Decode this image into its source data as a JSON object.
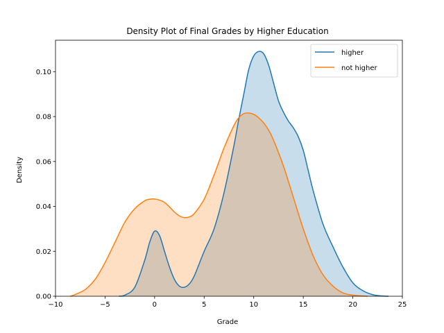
{
  "chart_data": {
    "type": "area",
    "title": "Density Plot of Final Grades by Higher Education",
    "xlabel": "Grade",
    "ylabel": "Density",
    "xlim": [
      -10,
      25
    ],
    "ylim": [
      0,
      0.114
    ],
    "xticks": [
      -10,
      -5,
      0,
      5,
      10,
      15,
      20,
      25
    ],
    "xtick_labels": [
      "−10",
      "−5",
      "0",
      "5",
      "10",
      "15",
      "20",
      "25"
    ],
    "yticks": [
      0,
      0.02,
      0.04,
      0.06,
      0.08,
      0.1
    ],
    "ytick_labels": [
      "0.00",
      "0.02",
      "0.04",
      "0.06",
      "0.08",
      "0.10"
    ],
    "grid": false,
    "legend_position": "top-right",
    "series": [
      {
        "name": "higher",
        "color": "#1f77b4",
        "fill_color": "#1f77b4",
        "x": [
          -3.6,
          -3,
          -2,
          -1,
          -0.5,
          0,
          0.5,
          1,
          1.5,
          2,
          2.5,
          3,
          3.5,
          4,
          5,
          6,
          7,
          8,
          8.5,
          9,
          9.5,
          10,
          10.5,
          11,
          11.5,
          12,
          12.5,
          13,
          13.5,
          14,
          14.5,
          15,
          15.5,
          16,
          17,
          18,
          19,
          20,
          21,
          22,
          23,
          23.6
        ],
        "y": [
          0.0,
          0.0005,
          0.004,
          0.016,
          0.024,
          0.029,
          0.027,
          0.02,
          0.013,
          0.0075,
          0.0045,
          0.004,
          0.0055,
          0.009,
          0.02,
          0.03,
          0.046,
          0.067,
          0.079,
          0.09,
          0.101,
          0.107,
          0.109,
          0.108,
          0.103,
          0.095,
          0.087,
          0.082,
          0.078,
          0.075,
          0.071,
          0.065,
          0.056,
          0.047,
          0.032,
          0.022,
          0.013,
          0.006,
          0.0025,
          0.0007,
          0.0001,
          0.0
        ]
      },
      {
        "name": "not higher",
        "color": "#ff7f0e",
        "fill_color": "#ff7f0e",
        "x": [
          -8.5,
          -8,
          -7,
          -6,
          -5,
          -4,
          -3,
          -2,
          -1,
          -0.5,
          0,
          0.5,
          1,
          1.5,
          2,
          2.5,
          3,
          3.5,
          4,
          5,
          6,
          7,
          8,
          8.5,
          9,
          9.5,
          10,
          10.5,
          11,
          11.5,
          12,
          13,
          14,
          15,
          16,
          17,
          18,
          19,
          20,
          21,
          21.5
        ],
        "y": [
          0.0,
          0.0008,
          0.003,
          0.0075,
          0.015,
          0.024,
          0.033,
          0.039,
          0.0425,
          0.0432,
          0.0433,
          0.0428,
          0.0418,
          0.0398,
          0.0375,
          0.0358,
          0.035,
          0.0353,
          0.0368,
          0.0432,
          0.054,
          0.066,
          0.076,
          0.0795,
          0.0813,
          0.0816,
          0.081,
          0.0795,
          0.0772,
          0.074,
          0.0695,
          0.058,
          0.044,
          0.03,
          0.018,
          0.0095,
          0.0045,
          0.0015,
          0.0005,
          0.0001,
          0.0
        ]
      }
    ]
  }
}
